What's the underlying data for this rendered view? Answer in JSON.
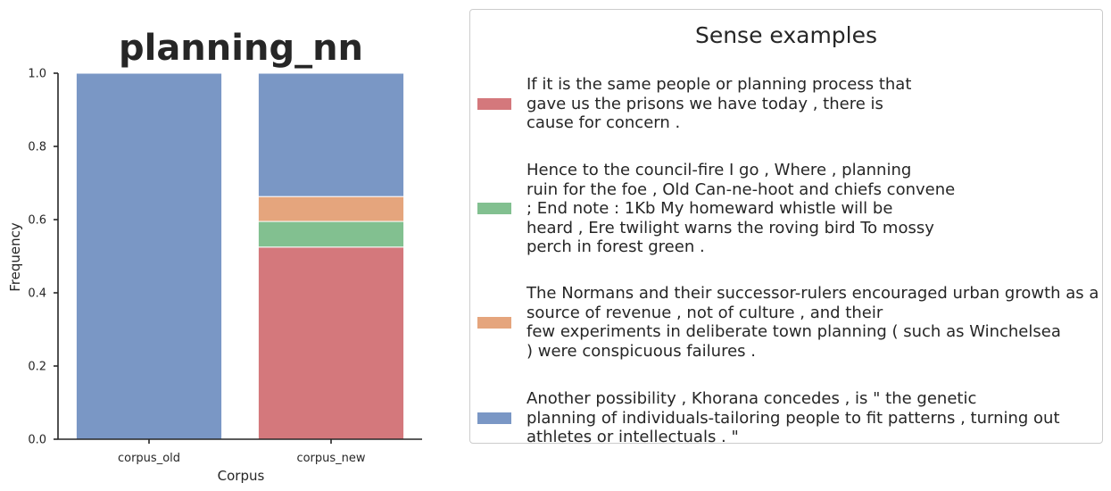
{
  "chart_data": {
    "type": "bar",
    "stacked": true,
    "title": "planning_nn",
    "xlabel": "Corpus",
    "ylabel": "Frequency",
    "ylim": [
      0,
      1.0
    ],
    "yticks": [
      "0.0",
      "0.2",
      "0.4",
      "0.6",
      "0.8",
      "1.0"
    ],
    "categories": [
      "corpus_old",
      "corpus_new"
    ],
    "series": [
      {
        "color": "#d4787c",
        "values": [
          0.0,
          0.525
        ]
      },
      {
        "color": "#82c090",
        "values": [
          0.0,
          0.07
        ]
      },
      {
        "color": "#e5a57d",
        "values": [
          0.0,
          0.068
        ]
      },
      {
        "color": "#7a97c5",
        "values": [
          1.0,
          0.337
        ]
      }
    ],
    "grid": false,
    "legend_placement": "right"
  },
  "legend": {
    "title": "Sense examples",
    "entries": [
      {
        "color": "#d4787c",
        "lines": [
          "If it is the same people or planning process that",
          "gave us the prisons we have today , there is",
          "cause for concern ."
        ]
      },
      {
        "color": "#82c090",
        "lines": [
          "Hence to the council-fire I go , Where , planning",
          "ruin for the foe , Old Can-ne-hoot and chiefs convene",
          "; End note : 1Kb My homeward whistle will be",
          "heard , Ere twilight warns the roving bird To mossy",
          "perch in forest green ."
        ]
      },
      {
        "color": "#e5a57d",
        "lines": [
          "The Normans and their successor-rulers encouraged urban growth as a",
          "source of revenue , not of culture , and their",
          "few experiments in deliberate town planning ( such as Winchelsea",
          ") were conspicuous failures ."
        ]
      },
      {
        "color": "#7a97c5",
        "lines": [
          "Another possibility , Khorana concedes , is \" the genetic",
          "planning of individuals-tailoring people to fit patterns , turning out",
          "athletes or intellectuals . \""
        ]
      }
    ]
  }
}
